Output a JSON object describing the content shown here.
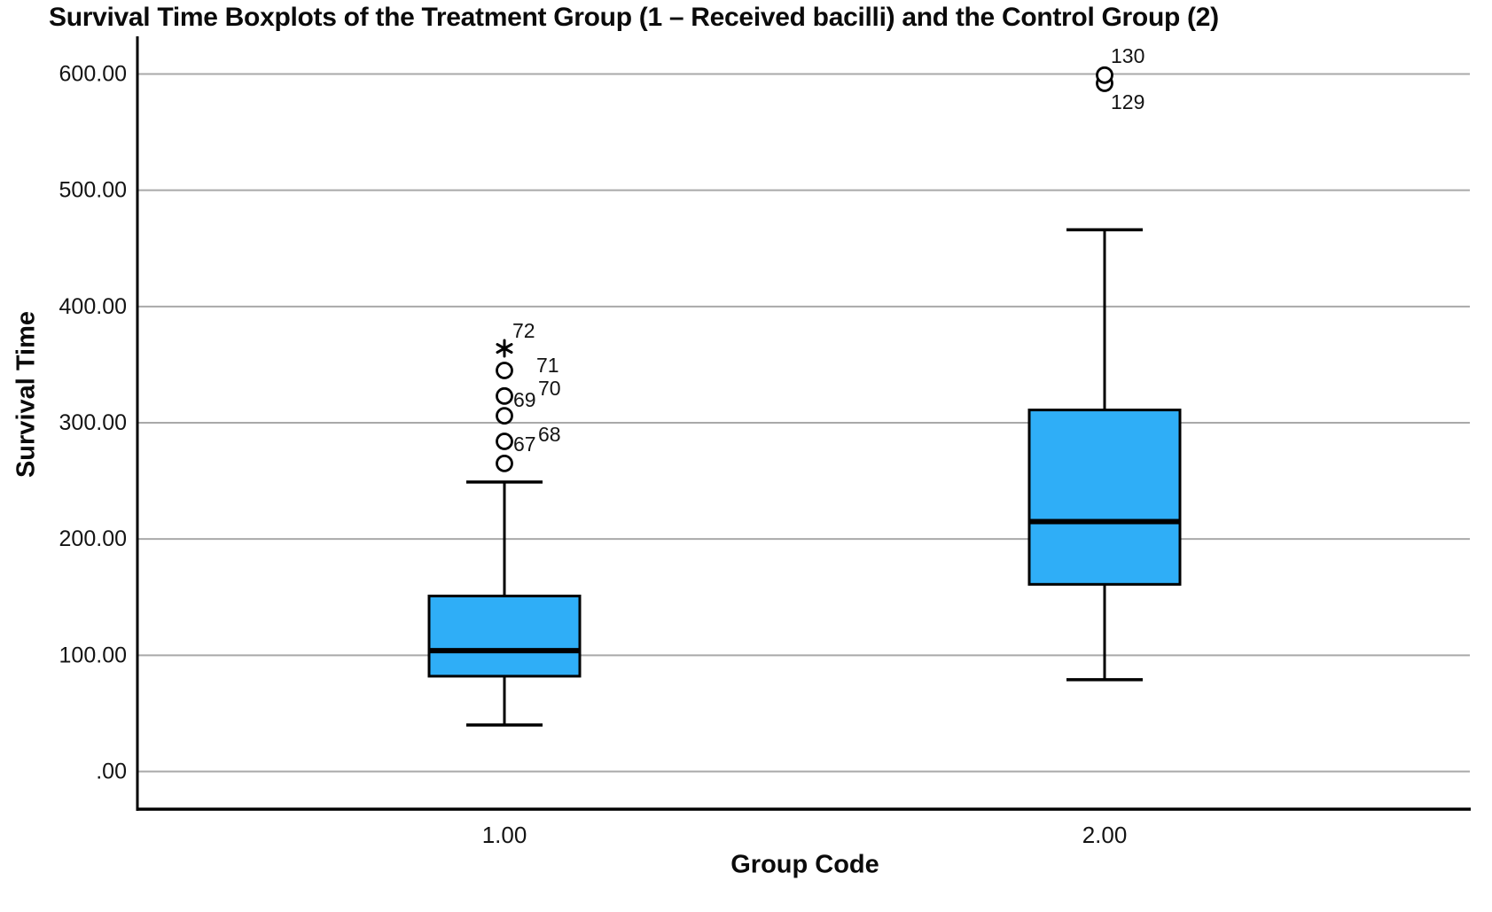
{
  "chart_data": {
    "type": "boxplot",
    "title": "Survival Time Boxplots of the Treatment Group (1 – Received bacilli) and the Control Group (2)",
    "xlabel": "Group Code",
    "ylabel": "Survival Time",
    "x_tick_labels": [
      "1.00",
      "2.00"
    ],
    "y_tick_labels": [
      ".00",
      "100.00",
      "200.00",
      "300.00",
      "400.00",
      "500.00",
      "600.00"
    ],
    "y_tick_values": [
      0,
      100,
      200,
      300,
      400,
      500,
      600
    ],
    "ylim": [
      -32,
      632
    ],
    "grid": "horizontal",
    "legend": "none",
    "colors": {
      "box_fill": "#2FAEF7",
      "box_stroke": "#000000",
      "grid": "#A9A9A9",
      "axis": "#000000",
      "text": "#141414"
    },
    "groups": [
      {
        "category": "1.00",
        "whisker_low": 40,
        "q1": 82,
        "median": 104,
        "q3": 151,
        "whisker_high": 249,
        "outliers": [
          {
            "value": 265,
            "marker": "circle",
            "labels": []
          },
          {
            "value": 284,
            "marker": "circle",
            "labels": [
              {
                "text": "67",
                "dx": 10,
                "dy": 3
              },
              {
                "text": "68",
                "dx": 38,
                "dy": -8
              }
            ]
          },
          {
            "value": 306,
            "marker": "circle",
            "labels": []
          },
          {
            "value": 323,
            "marker": "circle",
            "labels": [
              {
                "text": "69",
                "dx": 10,
                "dy": 4
              },
              {
                "text": "70",
                "dx": 38,
                "dy": -9
              }
            ]
          },
          {
            "value": 345,
            "marker": "circle",
            "labels": [
              {
                "text": "71",
                "dx": 36,
                "dy": -6
              }
            ]
          },
          {
            "value": 364,
            "marker": "star",
            "labels": [
              {
                "text": "72",
                "dx": 9,
                "dy": -20
              }
            ]
          }
        ]
      },
      {
        "category": "2.00",
        "whisker_low": 79,
        "q1": 161,
        "median": 215,
        "q3": 311,
        "whisker_high": 466,
        "outliers": [
          {
            "value": 592,
            "marker": "circle",
            "labels": [
              {
                "text": "129",
                "dx": 7,
                "dy": 21
              }
            ]
          },
          {
            "value": 599,
            "marker": "circle",
            "labels": [
              {
                "text": "130",
                "dx": 7,
                "dy": -22
              }
            ]
          }
        ]
      }
    ]
  }
}
